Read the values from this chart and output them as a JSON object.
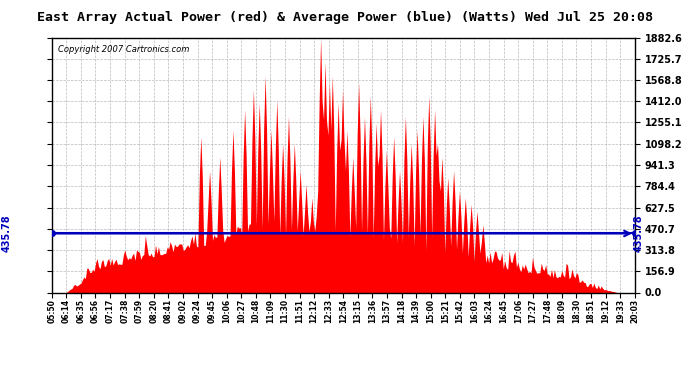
{
  "title": "East Array Actual Power (red) & Average Power (blue) (Watts) Wed Jul 25 20:08",
  "copyright": "Copyright 2007 Cartronics.com",
  "avg_power": 435.78,
  "ymax": 1882.6,
  "ymin": 0.0,
  "yticks": [
    0.0,
    156.9,
    313.8,
    470.7,
    627.5,
    784.4,
    941.3,
    1098.2,
    1255.1,
    1412.0,
    1568.8,
    1725.7,
    1882.6
  ],
  "xtick_labels": [
    "05:50",
    "06:14",
    "06:35",
    "06:56",
    "07:17",
    "07:38",
    "07:59",
    "08:20",
    "08:41",
    "09:02",
    "09:24",
    "09:45",
    "10:06",
    "10:27",
    "10:48",
    "11:09",
    "11:30",
    "11:51",
    "12:12",
    "12:33",
    "12:54",
    "13:15",
    "13:36",
    "13:57",
    "14:18",
    "14:39",
    "15:00",
    "15:21",
    "15:42",
    "16:03",
    "16:24",
    "16:45",
    "17:06",
    "17:27",
    "17:48",
    "18:09",
    "18:30",
    "18:51",
    "19:12",
    "19:33",
    "20:03"
  ],
  "background_color": "#ffffff",
  "plot_bg_color": "#ffffff",
  "grid_color": "#aaaaaa",
  "area_color": "#ff0000",
  "avg_line_color": "#0000bb",
  "title_fontsize": 10,
  "avg_label": "435.78"
}
